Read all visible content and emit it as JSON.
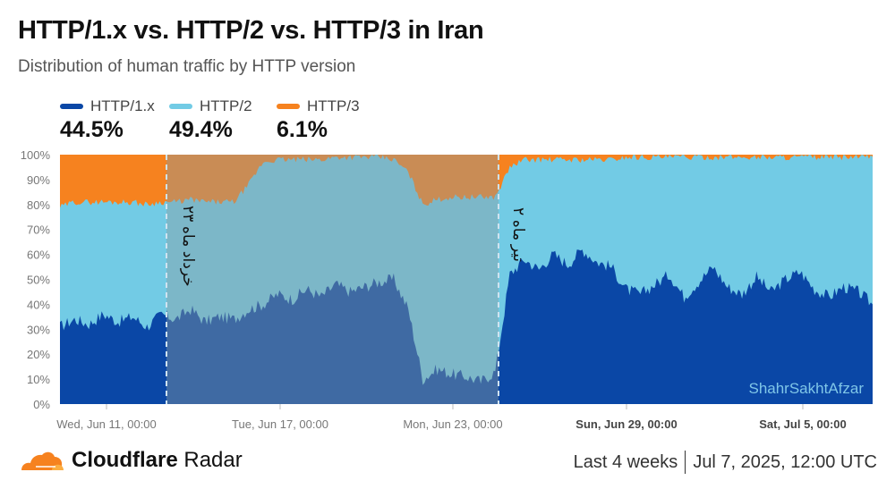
{
  "header": {
    "title": "HTTP/1.x vs. HTTP/2 vs. HTTP/3 in Iran",
    "subtitle": "Distribution of human traffic by HTTP version"
  },
  "legend": [
    {
      "label": "HTTP/1.x",
      "value": "44.5%",
      "color": "#0a47a6"
    },
    {
      "label": "HTTP/2",
      "value": "49.4%",
      "color": "#72cbe5"
    },
    {
      "label": "HTTP/3",
      "value": "6.1%",
      "color": "#f6821f"
    }
  ],
  "annotations": {
    "marker1_label": "۲۳ خرداد ماه",
    "marker2_label": "۲ تیر ماه",
    "watermark": "ShahrSakhtAfzar"
  },
  "footer": {
    "brand_bold": "Cloudflare",
    "brand_light": " Radar",
    "range": "Last 4 weeks",
    "timestamp": "Jul 7, 2025, 12:00 UTC"
  },
  "chart_data": {
    "type": "area",
    "stacked": true,
    "normalized": true,
    "title": "HTTP/1.x vs. HTTP/2 vs. HTTP/3 in Iran",
    "subtitle": "Distribution of human traffic by HTTP version",
    "xlabel": "",
    "ylabel": "",
    "ylim": [
      0,
      100
    ],
    "y_ticks": [
      "0%",
      "10%",
      "20%",
      "30%",
      "40%",
      "50%",
      "60%",
      "70%",
      "80%",
      "90%",
      "100%"
    ],
    "x_ticks": [
      "Wed, Jun 11, 00:00",
      "Tue, Jun 17, 00:00",
      "Mon, Jun 23, 00:00",
      "Sun, Jun 29, 00:00",
      "Sat, Jul 5, 00:00"
    ],
    "grid": true,
    "legend_position": "top",
    "x": [
      "Jun 9 12:00",
      "Jun 10 00:00",
      "Jun 10 12:00",
      "Jun 11 00:00",
      "Jun 11 12:00",
      "Jun 12 00:00",
      "Jun 12 12:00",
      "Jun 13 00:00",
      "Jun 13 12:00",
      "Jun 14 00:00",
      "Jun 14 12:00",
      "Jun 15 00:00",
      "Jun 15 12:00",
      "Jun 16 00:00",
      "Jun 16 12:00",
      "Jun 17 00:00",
      "Jun 17 12:00",
      "Jun 18 00:00",
      "Jun 18 12:00",
      "Jun 19 00:00",
      "Jun 19 12:00",
      "Jun 20 00:00",
      "Jun 20 12:00",
      "Jun 21 00:00",
      "Jun 21 12:00",
      "Jun 22 00:00",
      "Jun 22 12:00",
      "Jun 23 00:00",
      "Jun 23 12:00",
      "Jun 24 00:00",
      "Jun 24 12:00",
      "Jun 25 00:00",
      "Jun 25 12:00",
      "Jun 26 00:00",
      "Jun 26 12:00",
      "Jun 27 00:00",
      "Jun 27 12:00",
      "Jun 28 00:00",
      "Jun 28 12:00",
      "Jun 29 00:00",
      "Jun 29 12:00",
      "Jun 30 00:00",
      "Jun 30 12:00",
      "Jul 1 00:00",
      "Jul 1 12:00",
      "Jul 2 00:00",
      "Jul 2 12:00",
      "Jul 3 00:00",
      "Jul 3 12:00",
      "Jul 4 00:00",
      "Jul 4 12:00",
      "Jul 5 00:00",
      "Jul 5 12:00",
      "Jul 6 00:00",
      "Jul 6 12:00",
      "Jul 7 00:00",
      "Jul 7 12:00"
    ],
    "series": [
      {
        "name": "HTTP/1.x",
        "color": "#0a47a6",
        "values": [
          31,
          34,
          32,
          36,
          33,
          35,
          31,
          36,
          34,
          38,
          33,
          35,
          34,
          38,
          40,
          44,
          42,
          46,
          43,
          48,
          45,
          47,
          49,
          50,
          38,
          10,
          14,
          12,
          11,
          9,
          13,
          52,
          58,
          54,
          60,
          56,
          62,
          57,
          55,
          46,
          44,
          48,
          52,
          43,
          49,
          55,
          47,
          44,
          51,
          45,
          50,
          53,
          46,
          43,
          47,
          45,
          40
        ]
      },
      {
        "name": "HTTP/2",
        "color": "#72cbe5",
        "values": [
          48,
          47,
          49,
          45,
          48,
          46,
          49,
          45,
          47,
          44,
          48,
          46,
          47,
          50,
          57,
          54,
          56,
          52,
          55,
          51,
          54,
          52,
          50,
          48,
          55,
          70,
          68,
          71,
          72,
          74,
          70,
          43,
          40,
          44,
          38,
          42,
          36,
          41,
          43,
          53,
          55,
          51,
          47,
          56,
          50,
          44,
          52,
          55,
          48,
          54,
          49,
          46,
          53,
          56,
          52,
          54,
          59
        ]
      },
      {
        "name": "HTTP/3",
        "color": "#f6821f",
        "values": [
          21,
          19,
          19,
          19,
          19,
          19,
          20,
          19,
          19,
          18,
          19,
          19,
          19,
          12,
          3,
          2,
          2,
          2,
          2,
          1,
          1,
          1,
          1,
          2,
          7,
          20,
          18,
          17,
          17,
          17,
          17,
          5,
          2,
          2,
          2,
          2,
          2,
          2,
          2,
          1,
          1,
          1,
          1,
          1,
          1,
          1,
          1,
          1,
          1,
          1,
          1,
          1,
          1,
          1,
          1,
          1,
          1
        ]
      }
    ],
    "annotations": [
      {
        "type": "vline",
        "x": "Jun 13 ~00:00",
        "label": "۲۳ خرداد ماه",
        "style": "dashed"
      },
      {
        "type": "vline",
        "x": "Jun 23 ~12:00",
        "label": "۲ تیر ماه",
        "style": "dashed"
      },
      {
        "type": "shaded_region",
        "from": "Jun 13",
        "to": "Jun 23",
        "note": "grey overlay"
      }
    ]
  }
}
